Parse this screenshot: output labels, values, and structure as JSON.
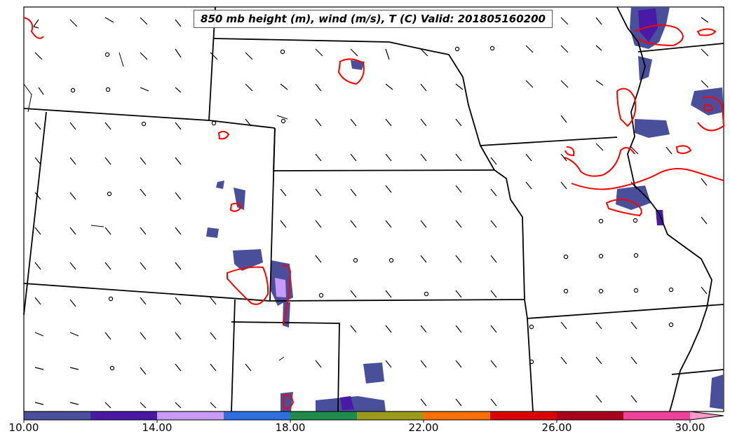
{
  "title": "850 mb height (m), wind (m/s), T (C) Valid: 201805160200",
  "colorbar": {
    "labels": [
      "10.00",
      "14.00",
      "18.00",
      "22.00",
      "26.00",
      "30.00"
    ],
    "colors": [
      "#4a4f9c",
      "#4a1aa6",
      "#c79bfc",
      "#2e6fe0",
      "#1f8a4a",
      "#9a9a1a",
      "#ff7000",
      "#dd0000",
      "#a8001e",
      "#f0409a"
    ],
    "extend_color": "#ff9acb"
  },
  "layers": {
    "background": "#ffffff",
    "boundaries": "#000000",
    "temperature_contour": "#ff0000",
    "shading_dark": "#4a4f9c",
    "shading_mid": "#4a1aa6",
    "shading_light": "#c79bfc"
  }
}
